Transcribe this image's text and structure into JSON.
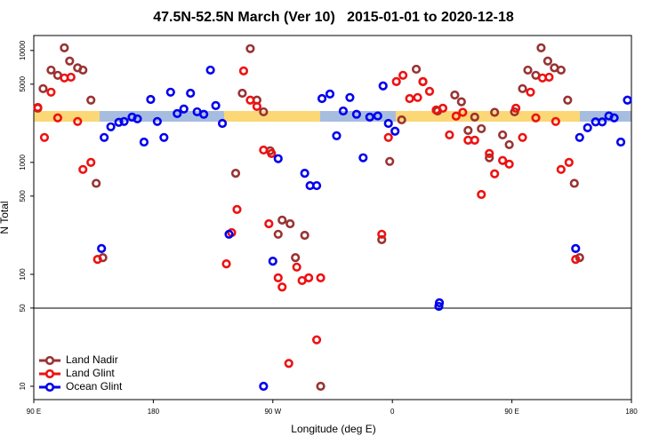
{
  "chart_data": {
    "type": "scatter",
    "title": "47.5N-52.5N March (Ver 10)   2015-01-01 to 2020-12-18",
    "x_label": "Longitude (deg E)",
    "y_label": "N Total",
    "xlim": [
      90,
      540
    ],
    "ylim": [
      7.6,
      13600
    ],
    "log_y": true,
    "legend": "lower left",
    "xticks": [
      {
        "value": 90,
        "label": "90 E"
      },
      {
        "value": 180,
        "label": "180"
      },
      {
        "value": 270,
        "label": "90 W"
      },
      {
        "value": 360,
        "label": "0"
      },
      {
        "value": 450,
        "label": "90 E"
      },
      {
        "value": 540,
        "label": "180"
      }
    ],
    "yticks": [
      10,
      50,
      100,
      500,
      1000,
      5000,
      10000
    ],
    "series": [
      {
        "name": "Land Nadir",
        "color": "#993333",
        "x": [
          93,
          97,
          103,
          108,
          113,
          117,
          123,
          127,
          133,
          137,
          142,
          242,
          247,
          253,
          258,
          263,
          268,
          274,
          277,
          283,
          287,
          294,
          306,
          352,
          358,
          367,
          378,
          383,
          394,
          407,
          412,
          417,
          422,
          427,
          433,
          437,
          443,
          448,
          452,
          458,
          462,
          468,
          472,
          477,
          482,
          487,
          492,
          497,
          501
        ],
        "values": [
          3050,
          4560,
          6680,
          6000,
          10560,
          8040,
          7000,
          6680,
          3600,
          650,
          141,
          800,
          4150,
          10380,
          3600,
          2830,
          1270,
          228,
          305,
          283,
          141,
          223,
          10,
          204,
          1020,
          2400,
          6800,
          5270,
          2880,
          4000,
          3480,
          1930,
          2540,
          2000,
          1100,
          2800,
          1760,
          1440,
          2830,
          4560,
          6680,
          6000,
          10560,
          8040,
          7000,
          6680,
          3600,
          650,
          141
        ]
      },
      {
        "name": "Land Glint",
        "color": "#ee1111",
        "x": [
          93,
          98,
          103,
          108,
          113,
          118,
          123,
          127,
          133,
          138,
          235,
          239,
          243,
          248,
          253,
          258,
          263,
          267,
          269,
          274,
          277,
          282,
          288,
          292,
          297,
          303,
          306,
          352,
          357,
          363,
          368,
          373,
          379,
          383,
          388,
          393,
          398,
          403,
          408,
          413,
          417,
          422,
          427,
          433,
          437,
          443,
          448,
          453,
          458,
          464,
          468,
          473,
          478,
          483,
          487,
          493,
          498
        ],
        "values": [
          3100,
          1670,
          4240,
          2500,
          5680,
          5770,
          2320,
          865,
          1000,
          136,
          124,
          236,
          380,
          6560,
          3600,
          3160,
          1290,
          283,
          1200,
          93,
          77,
          16,
          116,
          88,
          93,
          26,
          93,
          228,
          1670,
          5270,
          6000,
          3720,
          3800,
          5260,
          4310,
          2940,
          3050,
          1760,
          2590,
          2800,
          1580,
          1580,
          517,
          1200,
          790,
          1040,
          965,
          3050,
          1670,
          4240,
          2500,
          5680,
          5770,
          2320,
          865,
          1000,
          136
        ]
      },
      {
        "name": "Ocean Glint",
        "color": "#0000ee",
        "x": [
          141,
          143,
          148,
          154,
          158,
          164,
          168,
          173,
          178,
          183,
          188,
          193,
          198,
          203,
          208,
          213,
          218,
          223,
          227,
          232,
          237,
          263,
          270,
          274,
          294,
          298,
          303,
          307,
          313,
          318,
          323,
          328,
          333,
          338,
          343,
          349,
          353,
          357,
          362,
          395,
          395.4,
          498,
          501,
          507,
          513,
          518,
          523,
          527,
          532,
          537
        ],
        "values": [
          170,
          1670,
          2080,
          2280,
          2320,
          2540,
          2450,
          1520,
          3650,
          2320,
          1670,
          4240,
          2730,
          3000,
          4150,
          2830,
          2690,
          6680,
          3220,
          2230,
          228,
          10,
          131,
          1080,
          800,
          620,
          620,
          3720,
          4080,
          1730,
          2880,
          3800,
          2690,
          1100,
          2540,
          2600,
          4820,
          2230,
          1900,
          51.7,
          55.7,
          170,
          1670,
          2040,
          2300,
          2300,
          2600,
          2500,
          1520,
          3600
        ]
      }
    ]
  }
}
